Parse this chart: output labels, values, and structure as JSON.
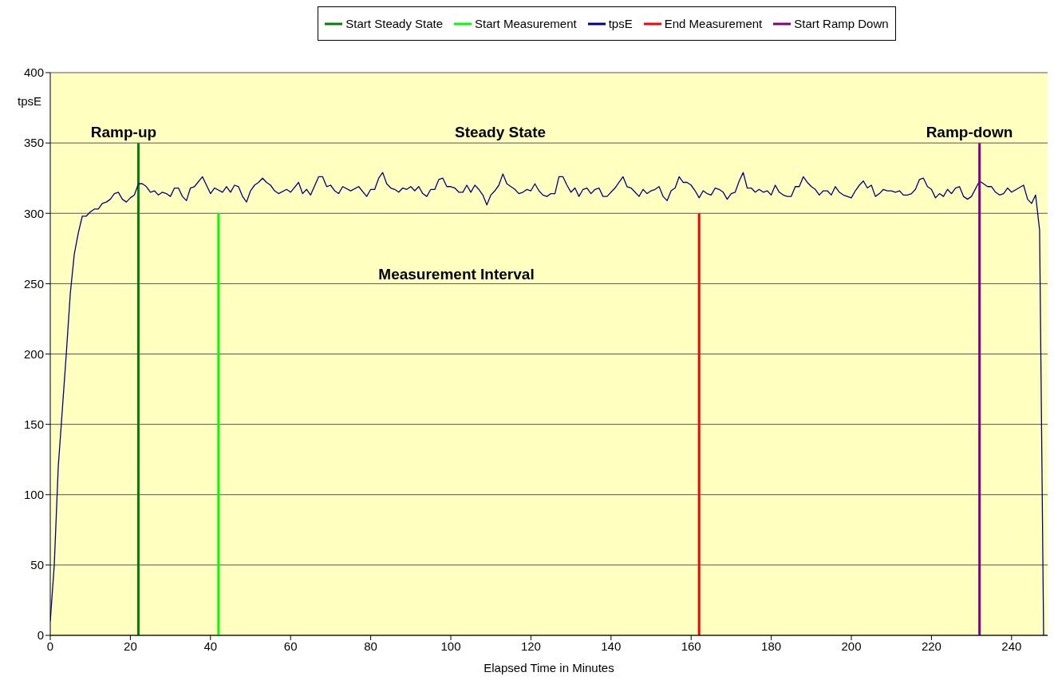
{
  "chart_data": {
    "type": "line",
    "xlabel": "Elapsed Time in Minutes",
    "ylabel": "tpsE",
    "xlim": [
      0,
      249
    ],
    "xticks": [
      0,
      20,
      40,
      60,
      80,
      100,
      120,
      140,
      160,
      180,
      200,
      220,
      240
    ],
    "ylim": [
      0,
      400
    ],
    "yticks": [
      0,
      50,
      100,
      150,
      200,
      250,
      300,
      350,
      400
    ],
    "grid": "y",
    "legend": "top",
    "marker": "none",
    "line_style": "solid",
    "annotations": [
      "Ramp-up",
      "Steady State",
      "Ramp-down",
      "Measurement Interval"
    ],
    "series": [
      {
        "name": "Start Steady State",
        "color": "#008000",
        "x": [
          22,
          22
        ],
        "values": [
          0,
          350
        ]
      },
      {
        "name": "Start Measurement",
        "color": "#00ff00",
        "x": [
          42,
          42
        ],
        "values": [
          0,
          300
        ]
      },
      {
        "name": "tpsE",
        "color": "#000080",
        "x": [
          0,
          1,
          2,
          3,
          4,
          5,
          6,
          7,
          8,
          9,
          10,
          11,
          12,
          13,
          14,
          15,
          16,
          17,
          18,
          19,
          20,
          21,
          22,
          23,
          24,
          25,
          26,
          27,
          28,
          29,
          30,
          31,
          32,
          33,
          34,
          35,
          36,
          38,
          40,
          41,
          43,
          44,
          45,
          46,
          47,
          48,
          49,
          50,
          51,
          52,
          53,
          54,
          55,
          56,
          57,
          59,
          60,
          62,
          63,
          64,
          65,
          67,
          68,
          69,
          70,
          71,
          72,
          73,
          75,
          77,
          79,
          80,
          81,
          82,
          83,
          84,
          85,
          86,
          87,
          88,
          89,
          90,
          91,
          92,
          93,
          94,
          95,
          96,
          97,
          98,
          99,
          100,
          101,
          102,
          103,
          104,
          105,
          106,
          107,
          108,
          109,
          110,
          111,
          112,
          113,
          114,
          115,
          116,
          117,
          118,
          119,
          120,
          121,
          122,
          123,
          124,
          125,
          126,
          127,
          128,
          129,
          130,
          131,
          132,
          133,
          134,
          135,
          136,
          137,
          138,
          139,
          140,
          141,
          142,
          143,
          144,
          145,
          146,
          147,
          148,
          149,
          150,
          151,
          152,
          153,
          154,
          155,
          156,
          157,
          158,
          159,
          160,
          161,
          162,
          163,
          164,
          165,
          166,
          167,
          168,
          169,
          170,
          171,
          172,
          173,
          174,
          175,
          176,
          177,
          178,
          179,
          180,
          181,
          182,
          183,
          184,
          185,
          186,
          187,
          188,
          189,
          190,
          191,
          192,
          193,
          194,
          195,
          196,
          197,
          198,
          199,
          200,
          201,
          202,
          203,
          204,
          205,
          206,
          207,
          208,
          209,
          210,
          211,
          212,
          213,
          214,
          215,
          216,
          217,
          218,
          219,
          220,
          221,
          222,
          223,
          224,
          225,
          226,
          227,
          228,
          229,
          230,
          232,
          233,
          234,
          235,
          236,
          237,
          238,
          239,
          240,
          243,
          244,
          245,
          246,
          247,
          248
        ],
        "values": [
          10,
          50,
          120,
          160,
          200,
          243,
          271,
          286,
          298,
          298,
          301,
          303,
          303,
          307,
          308,
          310,
          314,
          315,
          310,
          308,
          311,
          313,
          321,
          321,
          319,
          315,
          316,
          313,
          315,
          314,
          312,
          318,
          318,
          312,
          309,
          318,
          319,
          326,
          314,
          318,
          315,
          319,
          315,
          320,
          319,
          312,
          308,
          316,
          320,
          322,
          325,
          322,
          320,
          316,
          314,
          317,
          315,
          322,
          314,
          317,
          313,
          326,
          326,
          319,
          320,
          316,
          314,
          319,
          316,
          319,
          312,
          317,
          317,
          325,
          329,
          321,
          318,
          317,
          315,
          318,
          317,
          319,
          316,
          319,
          314,
          312,
          317,
          317,
          324,
          325,
          319,
          319,
          318,
          315,
          315,
          320,
          315,
          320,
          317,
          313,
          306,
          313,
          316,
          320,
          328,
          321,
          319,
          317,
          314,
          315,
          317,
          316,
          321,
          316,
          313,
          312,
          314,
          314,
          326,
          326,
          320,
          315,
          318,
          312,
          317,
          318,
          314,
          317,
          318,
          312,
          312,
          315,
          318,
          322,
          326,
          319,
          318,
          315,
          312,
          317,
          314,
          316,
          317,
          319,
          312,
          309,
          316,
          318,
          326,
          322,
          322,
          320,
          316,
          311,
          316,
          314,
          313,
          318,
          317,
          315,
          310,
          314,
          315,
          323,
          329,
          318,
          318,
          315,
          317,
          315,
          316,
          313,
          320,
          315,
          313,
          312,
          312,
          319,
          319,
          326,
          322,
          319,
          317,
          313,
          316,
          316,
          313,
          319,
          315,
          313,
          312,
          311,
          316,
          320,
          323,
          318,
          320,
          312,
          314,
          317,
          316,
          316,
          315,
          316,
          313,
          313,
          314,
          317,
          324,
          325,
          319,
          317,
          311,
          314,
          312,
          317,
          314,
          318,
          319,
          312,
          310,
          312,
          323,
          321,
          319,
          319,
          315,
          313,
          314,
          318,
          315,
          320,
          310,
          307,
          313,
          288,
          0
        ]
      },
      {
        "name": "End Measurement",
        "color": "#ff0000",
        "x": [
          162,
          162
        ],
        "values": [
          0,
          300
        ]
      },
      {
        "name": "Start Ramp Down",
        "color": "#800080",
        "x": [
          232,
          232
        ],
        "values": [
          0,
          350
        ]
      }
    ]
  }
}
